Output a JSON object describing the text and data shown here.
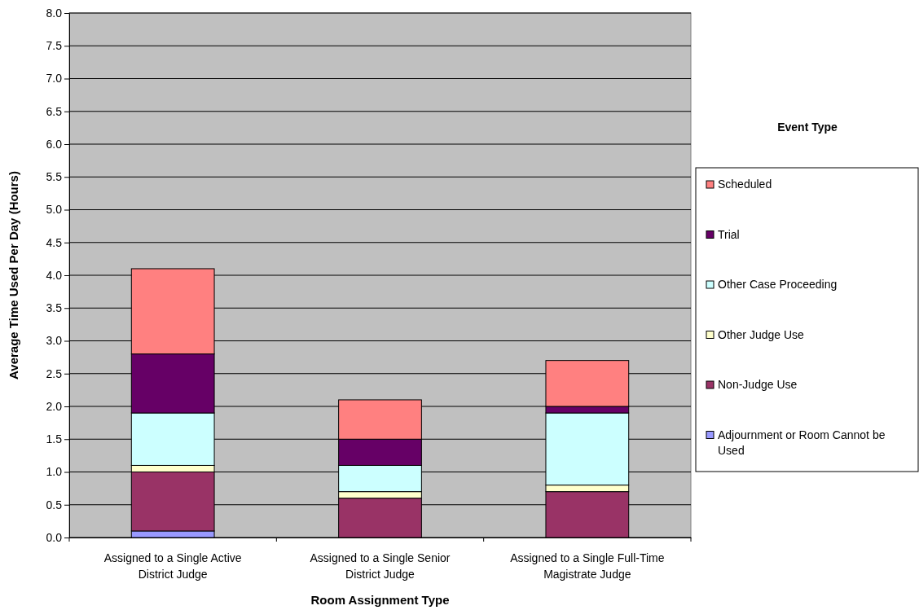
{
  "chart_data": {
    "type": "bar",
    "stacked": true,
    "xlabel": "Room Assignment Type",
    "ylabel": "Average Time Used Per Day (Hours)",
    "legend_title": "Event Type",
    "legend": "right",
    "grid": "y",
    "categories": [
      "Assigned to a Single Active District Judge",
      "Assigned to a Single Senior District Judge",
      "Assigned to a Single Full-Time Magistrate Judge"
    ],
    "ylim": [
      0,
      8
    ],
    "yticks": [
      {
        "value": 0,
        "label": "0.0"
      },
      {
        "value": 0.5,
        "label": "0.5"
      },
      {
        "value": 1,
        "label": "1.0"
      },
      {
        "value": 1.5,
        "label": "1.5"
      },
      {
        "value": 2,
        "label": "2.0"
      },
      {
        "value": 2.5,
        "label": "2.5"
      },
      {
        "value": 3,
        "label": "3.0"
      },
      {
        "value": 3.5,
        "label": "3.5"
      },
      {
        "value": 4,
        "label": "4.0"
      },
      {
        "value": 4.5,
        "label": "4.5"
      },
      {
        "value": 5,
        "label": "5.0"
      },
      {
        "value": 5.5,
        "label": "5.5"
      },
      {
        "value": 6,
        "label": "6.0"
      },
      {
        "value": 6.5,
        "label": "6.5"
      },
      {
        "value": 7,
        "label": "7.0"
      },
      {
        "value": 7.5,
        "label": "7.5"
      },
      {
        "value": 8,
        "label": "8.0"
      }
    ],
    "series": [
      {
        "name": "Adjournment or Room Cannot be Used",
        "color": "#9999ff",
        "values": [
          0.1,
          0,
          0
        ]
      },
      {
        "name": "Non-Judge Use",
        "color": "#993366",
        "values": [
          0.9,
          0.6,
          0.7
        ]
      },
      {
        "name": "Other Judge Use",
        "color": "#ffffcc",
        "values": [
          0.1,
          0.1,
          0.1
        ]
      },
      {
        "name": "Other Case Proceeding",
        "color": "#ccffff",
        "values": [
          0.8,
          0.4,
          1.1
        ]
      },
      {
        "name": "Trial",
        "color": "#660066",
        "values": [
          0.9,
          0.4,
          0.1
        ]
      },
      {
        "name": "Scheduled",
        "color": "#ff8080",
        "values": [
          1.3,
          0.6,
          0.7
        ]
      }
    ]
  }
}
